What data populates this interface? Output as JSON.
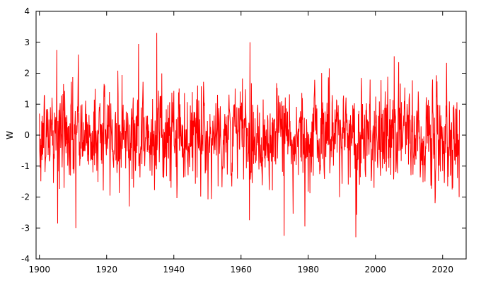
{
  "chart_data": {
    "type": "line",
    "title": "",
    "xlabel": "",
    "ylabel": "W",
    "xlim": [
      1899,
      2027
    ],
    "ylim": [
      -4,
      4
    ],
    "x_ticks": [
      1900,
      1920,
      1940,
      1960,
      1980,
      2000,
      2020
    ],
    "x_tick_labels": [
      "1900",
      "1920",
      "1940",
      "1960",
      "1980",
      "2000",
      "2020"
    ],
    "y_ticks": [
      -4,
      -3,
      -2,
      -1,
      0,
      1,
      2,
      3,
      4
    ],
    "y_tick_labels": [
      "-4",
      "-3",
      "-2",
      "-1",
      "0",
      "1",
      "2",
      "3",
      "4"
    ],
    "grid": false,
    "legend": "none",
    "series": [
      {
        "color": "#ff0000",
        "x_start": 1900,
        "x_end": 2025,
        "step": "monthly",
        "noted_values": [
          {
            "x": 1905.2,
            "y": 2.75
          },
          {
            "x": 1905.4,
            "y": -2.85
          },
          {
            "x": 1910.8,
            "y": -3.0
          },
          {
            "x": 1911.6,
            "y": 2.6
          },
          {
            "x": 1934.9,
            "y": 3.3
          },
          {
            "x": 1929.5,
            "y": 2.95
          },
          {
            "x": 1962.7,
            "y": 3.0
          },
          {
            "x": 1962.5,
            "y": -2.75
          },
          {
            "x": 1972.8,
            "y": -3.25
          },
          {
            "x": 1979.0,
            "y": -2.95
          },
          {
            "x": 1994.2,
            "y": -3.3
          },
          {
            "x": 2005.6,
            "y": 2.55
          },
          {
            "x": 2024.9,
            "y": -2.0
          }
        ]
      }
    ]
  }
}
